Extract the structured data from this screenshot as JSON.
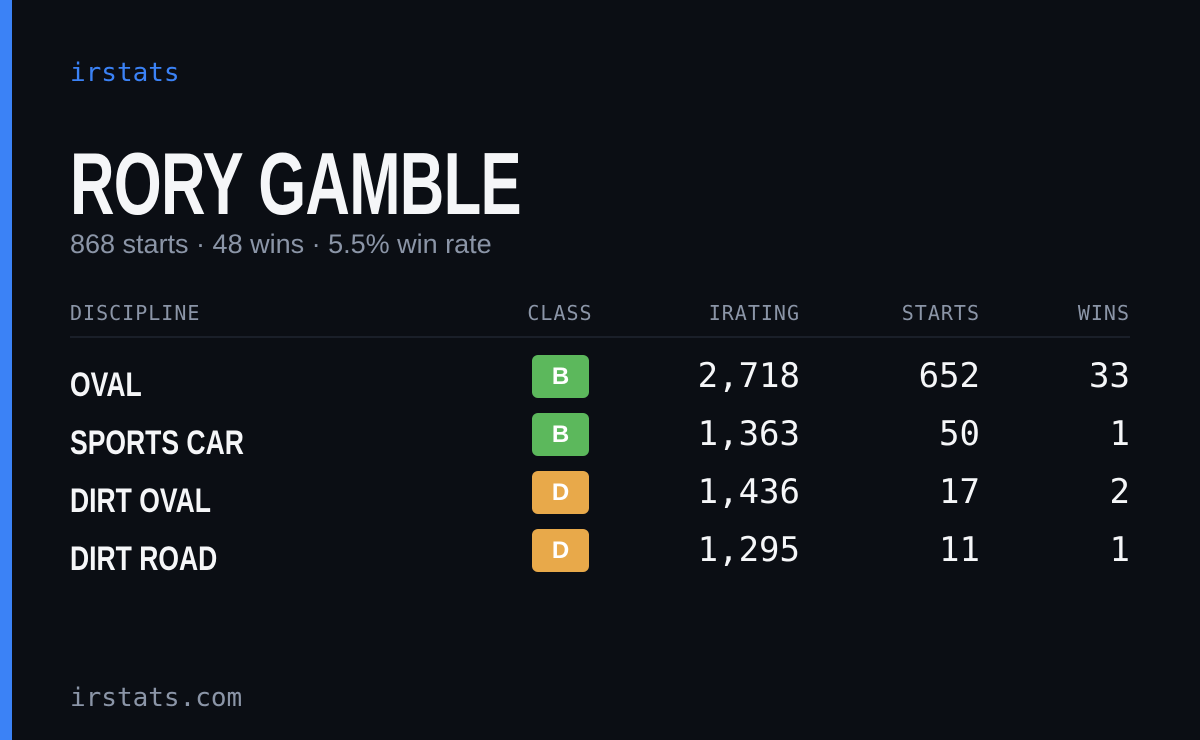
{
  "brand": "irstats",
  "driver": {
    "name": "RORY GAMBLE",
    "summary": "868 starts · 48 wins · 5.5% win rate"
  },
  "table": {
    "headers": [
      "DISCIPLINE",
      "CLASS",
      "IRATING",
      "STARTS",
      "WINS"
    ],
    "rows": [
      {
        "discipline": "OVAL",
        "class": "B",
        "class_color": "#5cb85c",
        "irating": "2,718",
        "starts": "652",
        "wins": "33"
      },
      {
        "discipline": "SPORTS CAR",
        "class": "B",
        "class_color": "#5cb85c",
        "irating": "1,363",
        "starts": "50",
        "wins": "1"
      },
      {
        "discipline": "DIRT OVAL",
        "class": "D",
        "class_color": "#e8a94a",
        "irating": "1,436",
        "starts": "17",
        "wins": "2"
      },
      {
        "discipline": "DIRT ROAD",
        "class": "D",
        "class_color": "#e8a94a",
        "irating": "1,295",
        "starts": "11",
        "wins": "1"
      }
    ]
  },
  "footer": "irstats.com"
}
